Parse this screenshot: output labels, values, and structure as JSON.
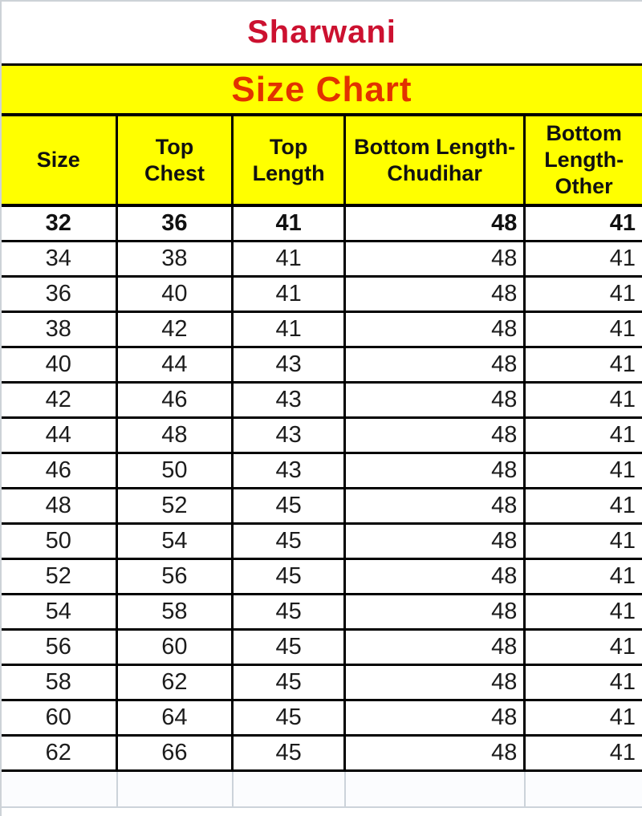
{
  "title": "Sharwani",
  "subtitle": "Size Chart",
  "colors": {
    "band_yellow": "#ffff00",
    "title_red": "#cc1130",
    "subtitle_red": "#e23200",
    "grid_black": "#000000",
    "sheet_gridline_gray": "#ccd3da"
  },
  "chart_data": {
    "type": "table",
    "title": "Sharwani",
    "subtitle": "Size Chart",
    "headers": [
      "Size",
      "Top\nChest",
      "Top\nLength",
      "Bottom Length-\nChudihar",
      "Bottom\nLength-\nOther"
    ],
    "rows": [
      [
        32,
        36,
        41,
        48,
        41
      ],
      [
        34,
        38,
        41,
        48,
        41
      ],
      [
        36,
        40,
        41,
        48,
        41
      ],
      [
        38,
        42,
        41,
        48,
        41
      ],
      [
        40,
        44,
        43,
        48,
        41
      ],
      [
        42,
        46,
        43,
        48,
        41
      ],
      [
        44,
        48,
        43,
        48,
        41
      ],
      [
        46,
        50,
        43,
        48,
        41
      ],
      [
        48,
        52,
        45,
        48,
        41
      ],
      [
        50,
        54,
        45,
        48,
        41
      ],
      [
        52,
        56,
        45,
        48,
        41
      ],
      [
        54,
        58,
        45,
        48,
        41
      ],
      [
        56,
        60,
        45,
        48,
        41
      ],
      [
        58,
        62,
        45,
        48,
        41
      ],
      [
        60,
        64,
        45,
        48,
        41
      ],
      [
        62,
        66,
        45,
        48,
        41
      ]
    ],
    "first_row_bold": true,
    "layout": {
      "column_alignments": [
        "center",
        "center",
        "center",
        "right",
        "right"
      ],
      "header_background": "#ffff00",
      "grid": "on"
    }
  }
}
